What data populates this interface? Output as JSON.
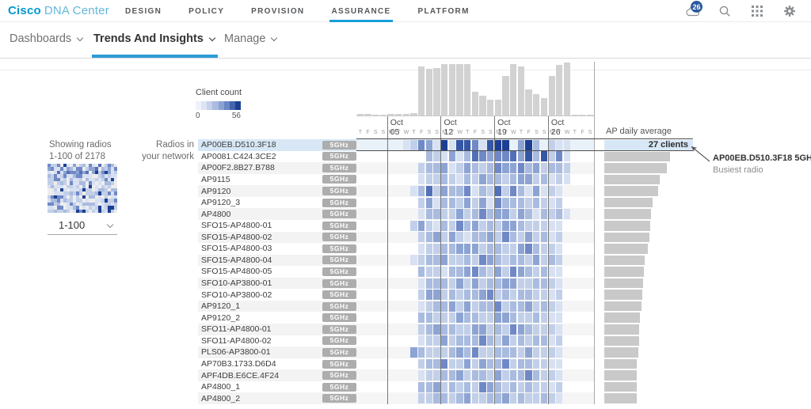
{
  "brand": {
    "name_bold": "Cisco",
    "name_light": "DNA Center"
  },
  "top_nav": {
    "items": [
      "DESIGN",
      "POLICY",
      "PROVISION",
      "ASSURANCE",
      "PLATFORM"
    ],
    "active": "ASSURANCE",
    "notification_count": "26",
    "icons": [
      "cloud-icon",
      "search-icon",
      "apps-grid-icon",
      "gear-icon"
    ]
  },
  "sub_nav": {
    "items": [
      "Dashboards",
      "Trends And Insights",
      "Manage"
    ],
    "active": "Trends And Insights"
  },
  "legend": {
    "title": "Client count",
    "min_label": "0",
    "max_label": "56",
    "palette": [
      "#eef2fa",
      "#dde5f4",
      "#c6d2ec",
      "#aabce1",
      "#8ba3d4",
      "#6a87c6",
      "#4465ad",
      "#1d3f92"
    ]
  },
  "left_panel": {
    "showing_line1": "Showing radios",
    "showing_line2": "1-100 of 2178",
    "range_selector_value": "1-100"
  },
  "radios_label": {
    "line1": "Radios in",
    "line2": "your network"
  },
  "ap_daily": {
    "title": "AP daily average",
    "selected_label": "27 clients"
  },
  "tooltip": {
    "line1": "AP00EB.D510.3F18 5GHz",
    "line2": "Busiest radio"
  },
  "chart_data": {
    "type": "heatmap",
    "title": "Client count",
    "color_min": 0,
    "color_max": 56,
    "cell_level_palette": [
      "#e8edf7",
      "#d8e1f2",
      "#c2cfe9",
      "#a9bbdf",
      "#8da4d3",
      "#7089c6",
      "#5270b7",
      "#3556a5",
      "#1d3f92"
    ],
    "x_day_letters": "TFSSMTWTFSSMTWTFSSMTWTFSSMTWTFS",
    "x_week_labels": [
      {
        "label": "Oct 05",
        "col": 5
      },
      {
        "label": "Oct 12",
        "col": 12
      },
      {
        "label": "Oct 19",
        "col": 19
      },
      {
        "label": "Oct 26",
        "col": 26
      }
    ],
    "top_histogram_relative": [
      3,
      3,
      2,
      2,
      3,
      3,
      3,
      4,
      92,
      88,
      90,
      97,
      97,
      97,
      97,
      45,
      38,
      30,
      30,
      75,
      97,
      93,
      50,
      40,
      33,
      75,
      95,
      100,
      2,
      2,
      2
    ],
    "right_bar_title": "AP daily average",
    "selected_row_index": 0,
    "rows": [
      {
        "name": "AP00EB.D510.3F18",
        "band": "5GHz",
        "daily_avg": 27,
        "cells": "0000001254181775178894839211000"
      },
      {
        "name": "AP0081.C424.3CE2",
        "band": "5GHz",
        "daily_avg": 20.1,
        "cells": "0000000003214136545564737251000"
      },
      {
        "name": "AP00F2.8B27.B788",
        "band": "5GHz",
        "daily_avg": 19.1,
        "cells": "0000000023341243235445342332000"
      },
      {
        "name": "AP9115",
        "band": "5GHz",
        "daily_avg": 16.9,
        "cells": "0000000012232132433234423121000"
      },
      {
        "name": "AP9120",
        "band": "5GHz",
        "daily_avg": 16.4,
        "cells": "0000000136243351326253141210000"
      },
      {
        "name": "AP9120_3",
        "band": "5GHz",
        "daily_avg": 14.7,
        "cells": "0000000024133242415333232120000"
      },
      {
        "name": "AP4800",
        "band": "5GHz",
        "daily_avg": 14.2,
        "cells": "0000000013322423534424313231000"
      },
      {
        "name": "SFO15-AP4800-01",
        "band": "5GHz",
        "daily_avg": 14,
        "cells": "0000000242132534232443222110000"
      },
      {
        "name": "SFO15-AP4800-02",
        "band": "5GHz",
        "daily_avg": 13.7,
        "cells": "0000000023424213342532423120000"
      },
      {
        "name": "SFO15-AP4800-03",
        "band": "5GHz",
        "daily_avg": 13.3,
        "cells": "0000000012233444233224532210000"
      },
      {
        "name": "SFO15-AP4800-04",
        "band": "5GHz",
        "daily_avg": 12.3,
        "cells": "0000000123342232543233242320000"
      },
      {
        "name": "SFO15-AP4800-05",
        "band": "5GHz",
        "daily_avg": 12,
        "cells": "0000000032213345324254323110000"
      },
      {
        "name": "SFO10-AP3800-01",
        "band": "5GHz",
        "daily_avg": 11.8,
        "cells": "0000000013332424233442233210000"
      },
      {
        "name": "SFO10-AP3800-02",
        "band": "5GHz",
        "daily_avg": 11.5,
        "cells": "0000000024423233452323322120000"
      },
      {
        "name": "AP9120_1",
        "band": "5GHz",
        "daily_avg": 11.3,
        "cells": "0000000012334242335233423210000"
      },
      {
        "name": "AP9120_2",
        "band": "5GHz",
        "daily_avg": 10.8,
        "cells": "0000000033222433224432232110000"
      },
      {
        "name": "SFO11-AP4800-01",
        "band": "5GHz",
        "daily_avg": 10.6,
        "cells": "0000000023433224423254322210000"
      },
      {
        "name": "SFO11-AP4800-02",
        "band": "5GHz",
        "daily_avg": 10.6,
        "cells": "0000000012242333532423233120000"
      },
      {
        "name": "PLS06-AP3800-01",
        "band": "5GHz",
        "daily_avg": 10.3,
        "cells": "0000000432223435223332422210000"
      },
      {
        "name": "AP70B3.1733.D6D4",
        "band": "5GHz",
        "daily_avg": 10,
        "cells": "0000000023352242433523322110000"
      },
      {
        "name": "APF4DB.E6CE.4F24",
        "band": "5GHz",
        "daily_avg": 9.8,
        "cells": "0000000012233423324233532210000"
      },
      {
        "name": "AP4800_1",
        "band": "5GHz",
        "daily_avg": 9.8,
        "cells": "0000000033423232543232322120000"
      },
      {
        "name": "AP4800_2",
        "band": "5GHz",
        "daily_avg": 9.8,
        "cells": "0000000022332342233423223210000"
      }
    ]
  }
}
